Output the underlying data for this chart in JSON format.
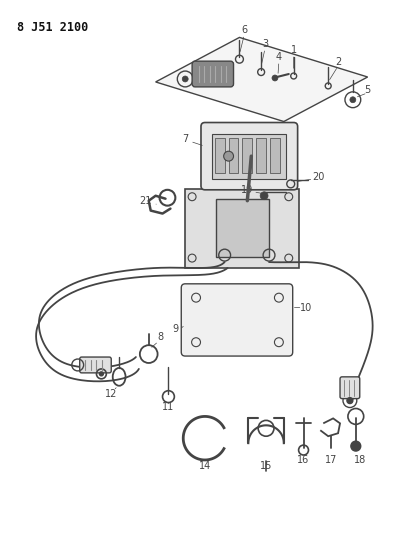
{
  "title": "8 J51 2100",
  "bg_color": "#ffffff",
  "lc": "#444444",
  "figsize": [
    4.0,
    5.33
  ],
  "dpi": 100
}
